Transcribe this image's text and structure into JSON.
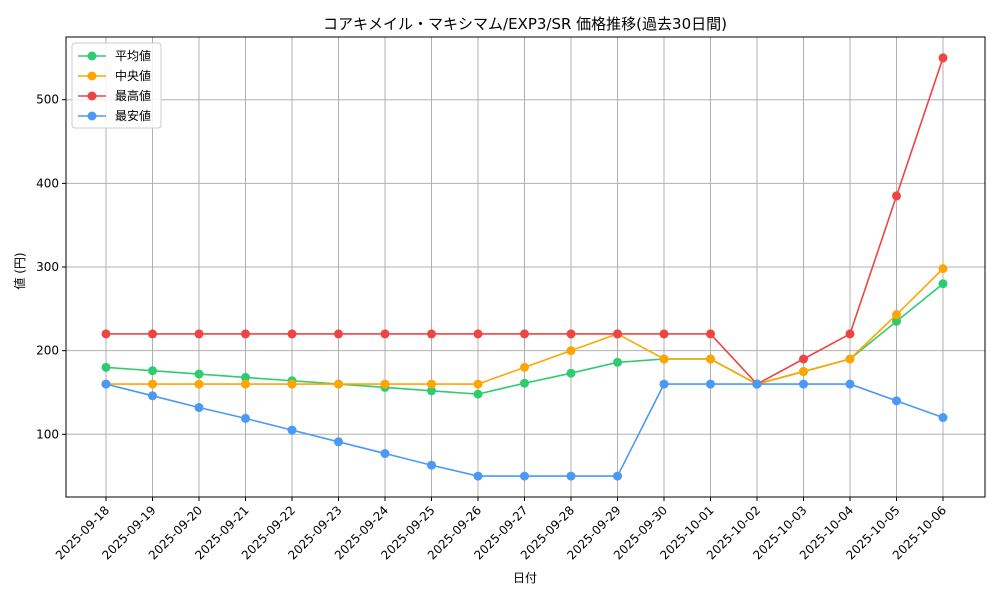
{
  "chart_data": {
    "type": "line",
    "title": "コアキメイル・マキシマム/EXP3/SR 価格推移(過去30日間)",
    "xlabel": "日付",
    "ylabel": "値 (円)",
    "categories": [
      "2025-09-18",
      "2025-09-19",
      "2025-09-20",
      "2025-09-21",
      "2025-09-22",
      "2025-09-23",
      "2025-09-24",
      "2025-09-25",
      "2025-09-26",
      "2025-09-27",
      "2025-09-28",
      "2025-09-29",
      "2025-09-30",
      "2025-10-01",
      "2025-10-02",
      "2025-10-03",
      "2025-10-04",
      "2025-10-05",
      "2025-10-06"
    ],
    "ylim": [
      25,
      575
    ],
    "yticks": [
      100,
      200,
      300,
      400,
      500
    ],
    "grid": true,
    "legend_position": "top-left",
    "series": [
      {
        "name": "平均値",
        "color": "#2ecc71",
        "values": [
          180,
          176,
          172,
          168,
          164,
          160,
          156,
          152,
          148,
          161,
          173,
          186,
          190,
          190,
          160,
          175,
          190,
          235,
          280
        ]
      },
      {
        "name": "中央値",
        "color": "#ffa500",
        "values": [
          160,
          160,
          160,
          160,
          160,
          160,
          160,
          160,
          160,
          180,
          200,
          220,
          190,
          190,
          160,
          175,
          190,
          243,
          298
        ]
      },
      {
        "name": "最高値",
        "color": "#ef4444",
        "values": [
          220,
          220,
          220,
          220,
          220,
          220,
          220,
          220,
          220,
          220,
          220,
          220,
          220,
          220,
          160,
          190,
          220,
          385,
          550
        ]
      },
      {
        "name": "最安値",
        "color": "#4a9af5",
        "values": [
          160,
          146,
          132,
          119,
          105,
          91,
          77,
          63,
          50,
          50,
          50,
          50,
          160,
          160,
          160,
          160,
          160,
          140,
          120
        ]
      }
    ]
  }
}
